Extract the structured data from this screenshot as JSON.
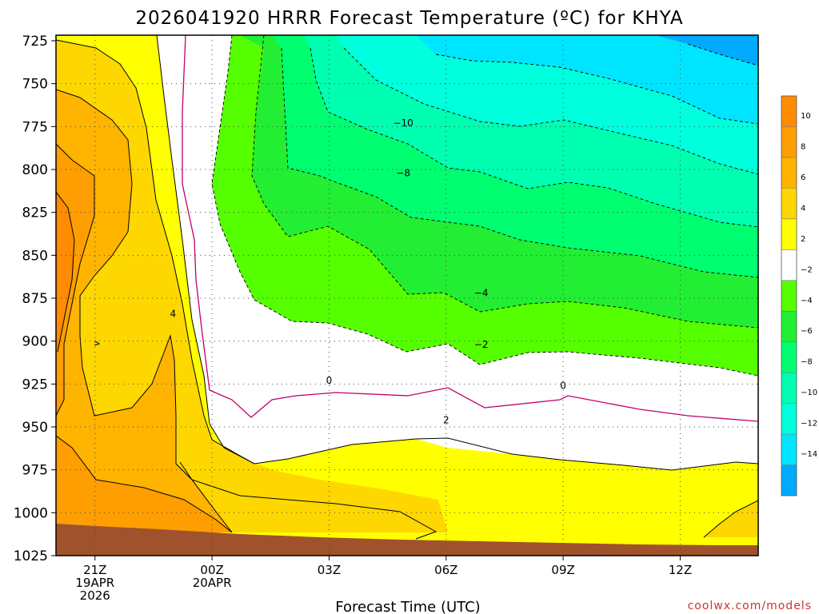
{
  "colors": {
    "t_pos_10_12": "#ff8c00",
    "t_pos_8_10": "#ff9e00",
    "t_pos_6_8": "#ffb400",
    "t_pos_4_6": "#ffd700",
    "t_pos_2_4": "#ffff00",
    "t_neg_2_2": "#ffffff",
    "t_neg_4_neg_2": "#55ff00",
    "t_neg_6_neg_4": "#22ee33",
    "t_neg_8_neg_6": "#00ff70",
    "t_neg_10_neg_8": "#00ffb0",
    "t_neg_12_neg_10": "#00ffdd",
    "t_neg_14_neg_12": "#00e5ff",
    "t_neg_16_neg_14": "#00aaff",
    "ground": "#a0522d",
    "freezing_line": "#c0006a",
    "credit": "#cc3333"
  },
  "chart_data": {
    "type": "heatmap",
    "title": "2026041920 HRRR Forecast Temperature (ºC) for KHYA",
    "xlabel": "Forecast Time (UTC)",
    "ylabel": "",
    "credit": "coolwx.com/models",
    "x_ticks": [
      {
        "hour": 21,
        "lines": [
          "21Z",
          "19APR",
          "2026"
        ]
      },
      {
        "hour": 24,
        "lines": [
          "00Z",
          "20APR"
        ]
      },
      {
        "hour": 27,
        "lines": [
          "03Z"
        ]
      },
      {
        "hour": 30,
        "lines": [
          "06Z"
        ]
      },
      {
        "hour": 33,
        "lines": [
          "09Z"
        ]
      },
      {
        "hour": 36,
        "lines": [
          "12Z"
        ]
      }
    ],
    "xlim_hours": [
      20,
      38
    ],
    "y_ticks": [
      725,
      750,
      775,
      800,
      825,
      850,
      875,
      900,
      925,
      950,
      975,
      1000,
      1025
    ],
    "ylim_hPa": [
      725,
      1025
    ],
    "colorbar": {
      "ticks": [
        "10",
        "8",
        "6",
        "4",
        "2",
        "−2",
        "−4",
        "−6",
        "−8",
        "−10",
        "−12",
        "−14"
      ],
      "units": "ºC"
    },
    "contour_labels": [
      {
        "text": "−10",
        "hour": 28.9,
        "hPa": 773
      },
      {
        "text": "−8",
        "hour": 28.9,
        "hPa": 802
      },
      {
        "text": "−4",
        "hour": 30.9,
        "hPa": 872
      },
      {
        "text": "−2",
        "hour": 30.9,
        "hPa": 902
      },
      {
        "text": "0",
        "hour": 27,
        "hPa": 923
      },
      {
        "text": "0",
        "hour": 33,
        "hPa": 926
      },
      {
        "text": "2",
        "hour": 30,
        "hPa": 946
      },
      {
        "text": "4",
        "hour": 23,
        "hPa": 884
      }
    ]
  }
}
